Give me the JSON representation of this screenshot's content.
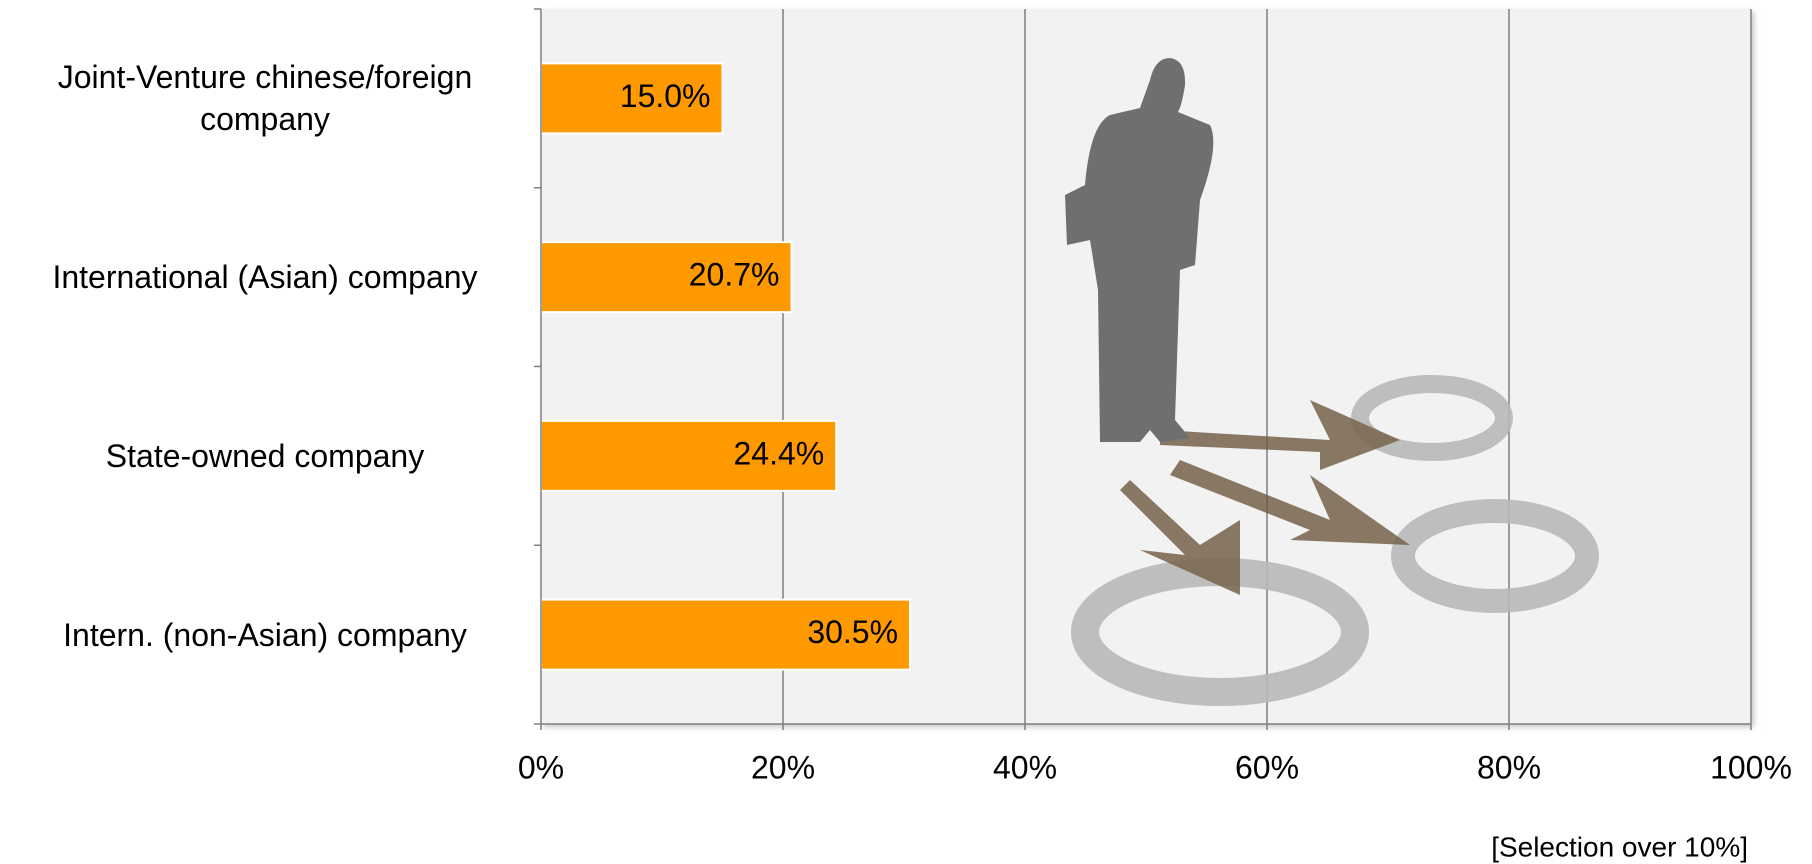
{
  "chart_data": {
    "type": "bar",
    "orientation": "horizontal",
    "categories": [
      "Joint-Venture chinese/foreign company",
      "International (Asian) company",
      "State-owned company",
      "Intern. (non-Asian) company"
    ],
    "values": [
      15.0,
      20.7,
      24.4,
      30.5
    ],
    "value_labels": [
      "15.0%",
      "20.7%",
      "24.4%",
      "30.5%"
    ],
    "color": "#ff9900",
    "xlim": [
      0,
      100
    ],
    "xticks": [
      {
        "value": 0,
        "label": "0%"
      },
      {
        "value": 20,
        "label": "20%"
      },
      {
        "value": 40,
        "label": "40%"
      },
      {
        "value": 60,
        "label": "60%"
      },
      {
        "value": 80,
        "label": "80%"
      },
      {
        "value": 100,
        "label": "100%"
      }
    ],
    "grid": true,
    "note": "[Selection over 10%]"
  }
}
